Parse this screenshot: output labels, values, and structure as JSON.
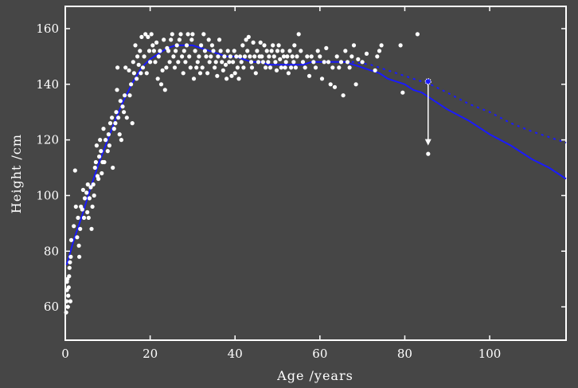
{
  "chart_data": {
    "type": "scatter",
    "xlabel": "Age /years",
    "ylabel": "Height /cm",
    "xlim": [
      0,
      118
    ],
    "ylim": [
      48,
      168
    ],
    "xticks": [
      0,
      20,
      40,
      60,
      80,
      100
    ],
    "yticks": [
      60,
      80,
      100,
      120,
      140,
      160
    ],
    "grid": false,
    "colors": {
      "background": "#464646",
      "points": "#ffffff",
      "fit": "#1a1aff",
      "axes": "#ffffff"
    },
    "points": [
      [
        0.2,
        58
      ],
      [
        0.3,
        62
      ],
      [
        0.4,
        66
      ],
      [
        0.4,
        69
      ],
      [
        0.5,
        70
      ],
      [
        0.6,
        60
      ],
      [
        0.7,
        64
      ],
      [
        0.8,
        67
      ],
      [
        0.9,
        71
      ],
      [
        1.0,
        74
      ],
      [
        1.1,
        76
      ],
      [
        1.2,
        62
      ],
      [
        1.3,
        78
      ],
      [
        1.4,
        84
      ],
      [
        2.0,
        89
      ],
      [
        2.3,
        109
      ],
      [
        2.5,
        96
      ],
      [
        2.8,
        85
      ],
      [
        3.0,
        92
      ],
      [
        3.2,
        82
      ],
      [
        3.3,
        78
      ],
      [
        3.5,
        88
      ],
      [
        3.7,
        96
      ],
      [
        4.0,
        95
      ],
      [
        4.2,
        102
      ],
      [
        4.4,
        92
      ],
      [
        4.6,
        99
      ],
      [
        5.0,
        101
      ],
      [
        5.2,
        94
      ],
      [
        5.3,
        104
      ],
      [
        5.5,
        92
      ],
      [
        5.7,
        99
      ],
      [
        6.0,
        103
      ],
      [
        6.2,
        88
      ],
      [
        6.4,
        96
      ],
      [
        6.6,
        104
      ],
      [
        6.8,
        100
      ],
      [
        7.0,
        110
      ],
      [
        7.2,
        112
      ],
      [
        7.4,
        118
      ],
      [
        7.6,
        107
      ],
      [
        7.8,
        106
      ],
      [
        8.0,
        114
      ],
      [
        8.2,
        120
      ],
      [
        8.4,
        116
      ],
      [
        8.6,
        108
      ],
      [
        8.8,
        112
      ],
      [
        9.0,
        124
      ],
      [
        9.2,
        112
      ],
      [
        9.5,
        120
      ],
      [
        10.0,
        116
      ],
      [
        10.2,
        122
      ],
      [
        10.4,
        118
      ],
      [
        10.6,
        126
      ],
      [
        11.0,
        128
      ],
      [
        11.2,
        110
      ],
      [
        11.5,
        124
      ],
      [
        11.8,
        126
      ],
      [
        12.0,
        130
      ],
      [
        12.2,
        138
      ],
      [
        12.3,
        146
      ],
      [
        12.5,
        128
      ],
      [
        12.8,
        122
      ],
      [
        13.0,
        134
      ],
      [
        13.2,
        120
      ],
      [
        13.5,
        132
      ],
      [
        13.8,
        130
      ],
      [
        14.0,
        136
      ],
      [
        14.2,
        146
      ],
      [
        14.5,
        128
      ],
      [
        15.0,
        145
      ],
      [
        15.2,
        136
      ],
      [
        15.5,
        140
      ],
      [
        15.8,
        126
      ],
      [
        16.0,
        148
      ],
      [
        16.2,
        144
      ],
      [
        16.5,
        154
      ],
      [
        16.8,
        142
      ],
      [
        17.0,
        150
      ],
      [
        17.3,
        147
      ],
      [
        17.6,
        152
      ],
      [
        17.8,
        144
      ],
      [
        18.0,
        157
      ],
      [
        18.3,
        146
      ],
      [
        18.6,
        150
      ],
      [
        18.9,
        158
      ],
      [
        19.2,
        144
      ],
      [
        19.5,
        157
      ],
      [
        19.8,
        152
      ],
      [
        20.0,
        148
      ],
      [
        20.3,
        158
      ],
      [
        20.6,
        154
      ],
      [
        20.9,
        152
      ],
      [
        21.2,
        148
      ],
      [
        21.5,
        155
      ],
      [
        21.8,
        142
      ],
      [
        22.0,
        150
      ],
      [
        22.3,
        152
      ],
      [
        22.6,
        140
      ],
      [
        22.9,
        145
      ],
      [
        23.2,
        156
      ],
      [
        23.5,
        138
      ],
      [
        23.8,
        146
      ],
      [
        24.0,
        153
      ],
      [
        24.3,
        152
      ],
      [
        24.6,
        148
      ],
      [
        24.9,
        156
      ],
      [
        25.2,
        158
      ],
      [
        25.5,
        150
      ],
      [
        25.8,
        146
      ],
      [
        26.0,
        152
      ],
      [
        26.3,
        154
      ],
      [
        26.6,
        148
      ],
      [
        26.9,
        156
      ],
      [
        27.2,
        158
      ],
      [
        27.5,
        150
      ],
      [
        27.8,
        144
      ],
      [
        28.0,
        152
      ],
      [
        28.3,
        148
      ],
      [
        28.6,
        154
      ],
      [
        28.9,
        158
      ],
      [
        29.2,
        150
      ],
      [
        29.5,
        146
      ],
      [
        29.8,
        156
      ],
      [
        30.0,
        158
      ],
      [
        30.3,
        142
      ],
      [
        30.6,
        152
      ],
      [
        30.9,
        146
      ],
      [
        31.2,
        148
      ],
      [
        31.5,
        150
      ],
      [
        31.8,
        144
      ],
      [
        32.0,
        154
      ],
      [
        32.3,
        146
      ],
      [
        32.6,
        158
      ],
      [
        32.9,
        152
      ],
      [
        33.2,
        150
      ],
      [
        33.5,
        144
      ],
      [
        33.8,
        156
      ],
      [
        34.0,
        148
      ],
      [
        34.3,
        150
      ],
      [
        34.6,
        154
      ],
      [
        34.9,
        152
      ],
      [
        35.2,
        146
      ],
      [
        35.5,
        148
      ],
      [
        35.8,
        143
      ],
      [
        36.0,
        150
      ],
      [
        36.3,
        156
      ],
      [
        36.6,
        152
      ],
      [
        36.9,
        148
      ],
      [
        37.2,
        145
      ],
      [
        37.5,
        150
      ],
      [
        37.8,
        147
      ],
      [
        38.0,
        142
      ],
      [
        38.3,
        152
      ],
      [
        38.6,
        148
      ],
      [
        38.9,
        150
      ],
      [
        39.2,
        143
      ],
      [
        39.5,
        148
      ],
      [
        39.8,
        152
      ],
      [
        40.0,
        144
      ],
      [
        40.3,
        150
      ],
      [
        40.6,
        146
      ],
      [
        40.9,
        142
      ],
      [
        41.2,
        150
      ],
      [
        41.5,
        148
      ],
      [
        41.8,
        154
      ],
      [
        42.0,
        146
      ],
      [
        42.3,
        150
      ],
      [
        42.6,
        156
      ],
      [
        42.9,
        152
      ],
      [
        43.2,
        157
      ],
      [
        43.5,
        150
      ],
      [
        43.8,
        148
      ],
      [
        44.0,
        146
      ],
      [
        44.3,
        155
      ],
      [
        44.6,
        150
      ],
      [
        44.9,
        144
      ],
      [
        45.2,
        152
      ],
      [
        45.5,
        148
      ],
      [
        45.8,
        150
      ],
      [
        46.0,
        155
      ],
      [
        46.3,
        150
      ],
      [
        46.6,
        148
      ],
      [
        46.9,
        154
      ],
      [
        47.2,
        146
      ],
      [
        47.5,
        152
      ],
      [
        47.8,
        148
      ],
      [
        48.0,
        150
      ],
      [
        48.3,
        146
      ],
      [
        48.6,
        152
      ],
      [
        48.9,
        154
      ],
      [
        49.2,
        150
      ],
      [
        49.5,
        148
      ],
      [
        49.8,
        145
      ],
      [
        50.0,
        152
      ],
      [
        50.3,
        154
      ],
      [
        50.6,
        149
      ],
      [
        50.9,
        146
      ],
      [
        51.2,
        152
      ],
      [
        51.5,
        150
      ],
      [
        51.8,
        146
      ],
      [
        52.0,
        148
      ],
      [
        52.3,
        150
      ],
      [
        52.6,
        144
      ],
      [
        52.9,
        152
      ],
      [
        53.2,
        146
      ],
      [
        53.5,
        150
      ],
      [
        53.8,
        148
      ],
      [
        54.0,
        154
      ],
      [
        54.3,
        146
      ],
      [
        54.6,
        150
      ],
      [
        55.0,
        158
      ],
      [
        55.5,
        152
      ],
      [
        56.0,
        148
      ],
      [
        56.5,
        146
      ],
      [
        57.0,
        150
      ],
      [
        57.5,
        143
      ],
      [
        58.0,
        150
      ],
      [
        58.5,
        148
      ],
      [
        59.0,
        146
      ],
      [
        59.5,
        152
      ],
      [
        60.0,
        150
      ],
      [
        60.5,
        142
      ],
      [
        61.0,
        148
      ],
      [
        61.5,
        153
      ],
      [
        62.0,
        148
      ],
      [
        62.5,
        140
      ],
      [
        63.0,
        146
      ],
      [
        63.5,
        139
      ],
      [
        64.0,
        150
      ],
      [
        64.5,
        146
      ],
      [
        65.0,
        148
      ],
      [
        65.5,
        136
      ],
      [
        66.0,
        152
      ],
      [
        66.5,
        148
      ],
      [
        67.0,
        146
      ],
      [
        67.5,
        150
      ],
      [
        68.0,
        154
      ],
      [
        68.5,
        140
      ],
      [
        69.0,
        149
      ],
      [
        70.0,
        148
      ],
      [
        71.0,
        151
      ],
      [
        73.0,
        145
      ],
      [
        73.5,
        150
      ],
      [
        74.0,
        152
      ],
      [
        74.5,
        154
      ],
      [
        79.0,
        154
      ],
      [
        79.5,
        137
      ],
      [
        83.0,
        158
      ],
      [
        85.5,
        115
      ]
    ],
    "fit_line": [
      [
        0.3,
        75
      ],
      [
        2,
        84
      ],
      [
        4,
        93
      ],
      [
        6,
        103
      ],
      [
        8,
        112
      ],
      [
        10,
        120
      ],
      [
        12,
        128
      ],
      [
        14,
        135
      ],
      [
        16,
        141
      ],
      [
        18,
        146
      ],
      [
        20,
        149
      ],
      [
        22,
        151
      ],
      [
        24,
        153
      ],
      [
        26,
        154
      ],
      [
        28,
        154
      ],
      [
        30,
        154
      ],
      [
        32,
        153
      ],
      [
        34,
        152
      ],
      [
        36,
        151
      ],
      [
        38,
        150
      ],
      [
        40,
        150
      ],
      [
        42,
        149
      ],
      [
        44,
        148
      ],
      [
        46,
        148
      ],
      [
        48,
        147
      ],
      [
        50,
        147
      ],
      [
        52,
        147
      ],
      [
        54,
        147
      ],
      [
        56,
        147
      ],
      [
        58,
        148
      ],
      [
        60,
        148
      ],
      [
        62,
        148
      ],
      [
        64,
        148
      ],
      [
        66,
        148
      ],
      [
        68,
        147
      ],
      [
        70,
        146
      ],
      [
        72,
        145
      ],
      [
        74,
        144
      ],
      [
        76,
        142
      ],
      [
        78,
        141
      ],
      [
        80,
        140
      ],
      [
        82,
        138
      ],
      [
        84,
        137
      ],
      [
        86,
        135
      ],
      [
        88,
        133
      ],
      [
        90,
        131
      ],
      [
        95,
        127
      ],
      [
        100,
        122
      ],
      [
        105,
        118
      ],
      [
        110,
        113
      ],
      [
        114,
        110
      ],
      [
        118,
        106
      ]
    ],
    "fit_dashed": [
      [
        66,
        148
      ],
      [
        68,
        148
      ],
      [
        70,
        147.5
      ],
      [
        72,
        147
      ],
      [
        74,
        146
      ],
      [
        76,
        145
      ],
      [
        78,
        144
      ],
      [
        80,
        143
      ],
      [
        82,
        142
      ],
      [
        84,
        141
      ],
      [
        86,
        140
      ],
      [
        90,
        137
      ],
      [
        95,
        133
      ],
      [
        100,
        130
      ],
      [
        105,
        126
      ],
      [
        110,
        123
      ],
      [
        114,
        121
      ],
      [
        118,
        119
      ]
    ],
    "highlight_point": [
      85.5,
      141
    ],
    "arrow": {
      "from": [
        85.5,
        140
      ],
      "to": [
        85.5,
        118
      ]
    }
  }
}
